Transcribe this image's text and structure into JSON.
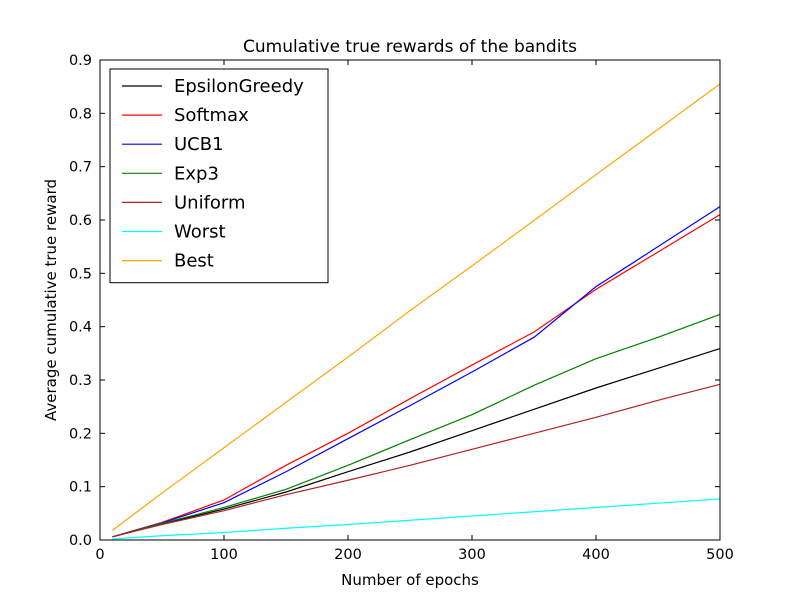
{
  "chart_data": {
    "type": "line",
    "title": "Cumulative true rewards of the bandits",
    "xlabel": "Number of epochs",
    "ylabel": "Average cumulative true reward",
    "xlim": [
      0,
      500
    ],
    "ylim": [
      0,
      0.9
    ],
    "xticks": [
      0,
      100,
      200,
      300,
      400,
      500
    ],
    "xtick_labels": [
      "0",
      "100",
      "200",
      "300",
      "400",
      "500"
    ],
    "yticks": [
      0.0,
      0.1,
      0.2,
      0.3,
      0.4,
      0.5,
      0.6,
      0.7,
      0.8,
      0.9
    ],
    "ytick_labels": [
      "0.0",
      "0.1",
      "0.2",
      "0.3",
      "0.4",
      "0.5",
      "0.6",
      "0.7",
      "0.8",
      "0.9"
    ],
    "grid": false,
    "legend_position": "top-left",
    "x": [
      10,
      50,
      100,
      150,
      200,
      250,
      300,
      350,
      400,
      450,
      500
    ],
    "series": [
      {
        "name": "EpsilonGreedy",
        "color": "#000000",
        "values": [
          0.006,
          0.03,
          0.058,
          0.09,
          0.128,
          0.165,
          0.205,
          0.245,
          0.285,
          0.322,
          0.359
        ]
      },
      {
        "name": "Softmax",
        "color": "#ff0000",
        "values": [
          0.006,
          0.033,
          0.075,
          0.14,
          0.2,
          0.265,
          0.328,
          0.39,
          0.47,
          0.54,
          0.61
        ]
      },
      {
        "name": "UCB1",
        "color": "#0000ff",
        "values": [
          0.006,
          0.032,
          0.07,
          0.128,
          0.19,
          0.252,
          0.315,
          0.38,
          0.475,
          0.55,
          0.625
        ]
      },
      {
        "name": "Exp3",
        "color": "#008000",
        "values": [
          0.006,
          0.031,
          0.061,
          0.095,
          0.14,
          0.188,
          0.235,
          0.29,
          0.34,
          0.38,
          0.423
        ]
      },
      {
        "name": "Uniform",
        "color": "#b22222",
        "values": [
          0.006,
          0.029,
          0.055,
          0.085,
          0.112,
          0.14,
          0.17,
          0.2,
          0.23,
          0.262,
          0.292
        ]
      },
      {
        "name": "Worst",
        "color": "#00ffff",
        "values": [
          0.002,
          0.008,
          0.014,
          0.022,
          0.029,
          0.037,
          0.045,
          0.053,
          0.061,
          0.069,
          0.077
        ]
      },
      {
        "name": "Best",
        "color": "#ffa500",
        "values": [
          0.018,
          0.088,
          0.173,
          0.258,
          0.343,
          0.43,
          0.514,
          0.599,
          0.685,
          0.77,
          0.855
        ]
      }
    ]
  }
}
